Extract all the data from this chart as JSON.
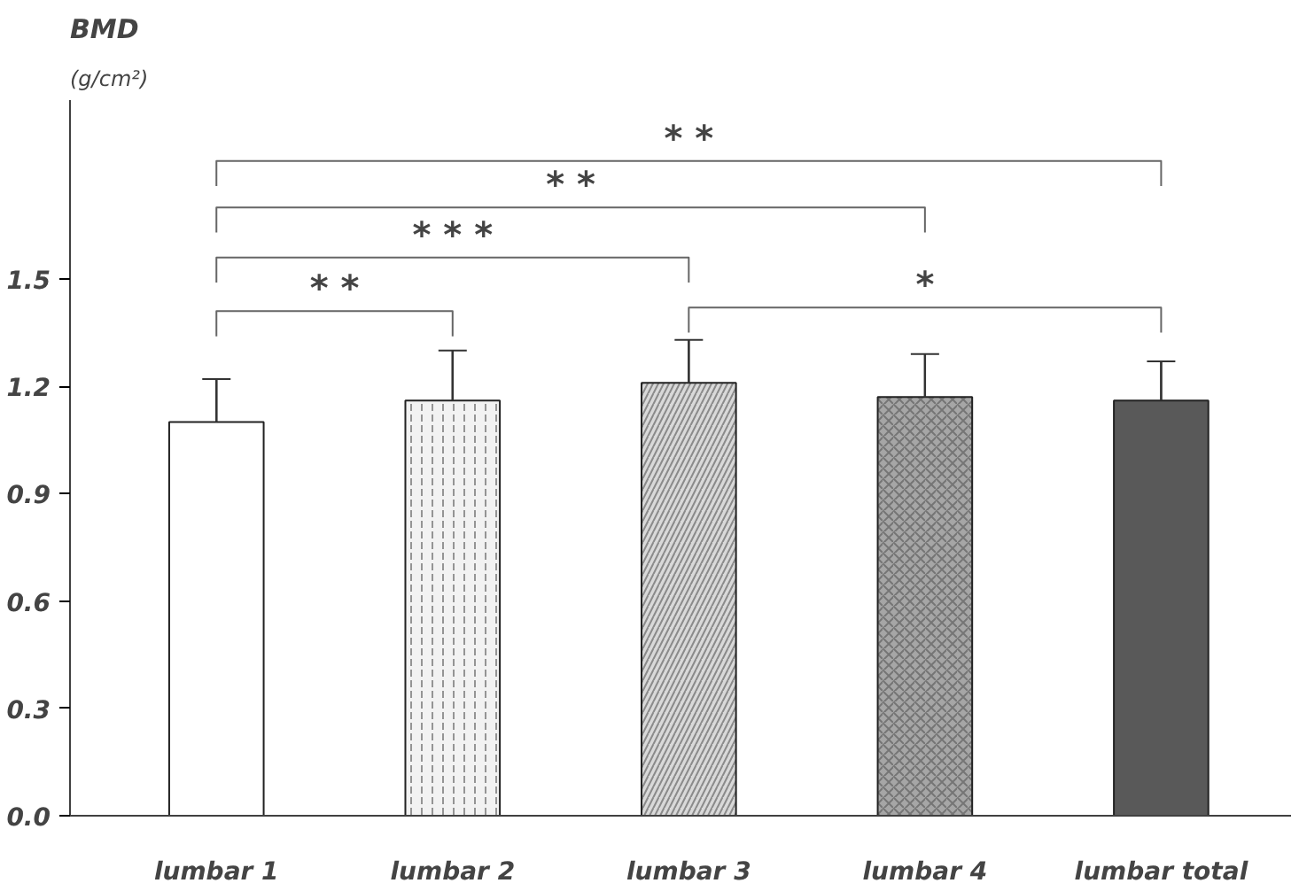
{
  "chart_data": {
    "type": "bar",
    "title": "BMD",
    "ylabel": "(g/cm²)",
    "categories": [
      "lumbar 1",
      "lumbar 2",
      "lumbar 3",
      "lumbar 4",
      "lumbar total"
    ],
    "values": [
      1.1,
      1.16,
      1.21,
      1.17,
      1.16
    ],
    "errors": [
      0.12,
      0.14,
      0.12,
      0.12,
      0.11
    ],
    "colors": [
      "#ffffff",
      "#f2f2f2",
      "#d9d9d9",
      "#a6a6a6",
      "#595959"
    ],
    "ylim": [
      0,
      2.0
    ],
    "yticks": [
      "0.0",
      0.3,
      0.6,
      0.9,
      1.2,
      1.5
    ],
    "annotations": [
      "* *",
      "* *",
      "* * *",
      "* *",
      "*"
    ],
    "grid": false
  }
}
